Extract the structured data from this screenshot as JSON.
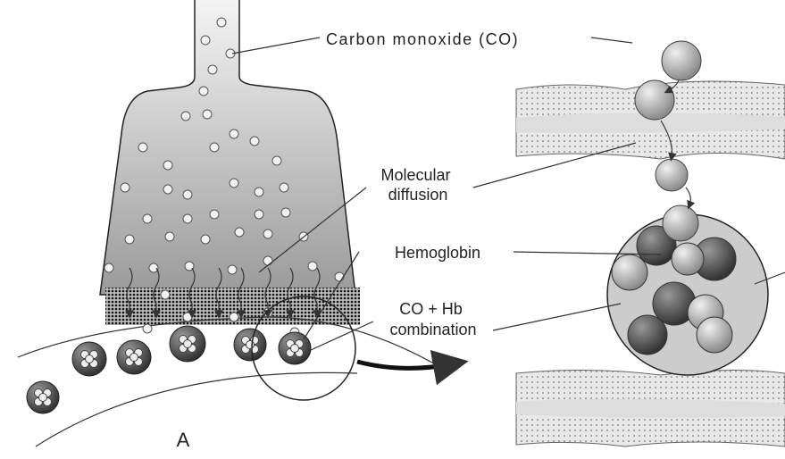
{
  "labels": {
    "carbon_monoxide": "Carbon monoxide (CO)",
    "molecular_diffusion": [
      "Molecular",
      "diffusion"
    ],
    "hemoglobin": "Hemoglobin",
    "co_hb": [
      "CO + Hb",
      "combination"
    ],
    "panel": "A"
  }
}
